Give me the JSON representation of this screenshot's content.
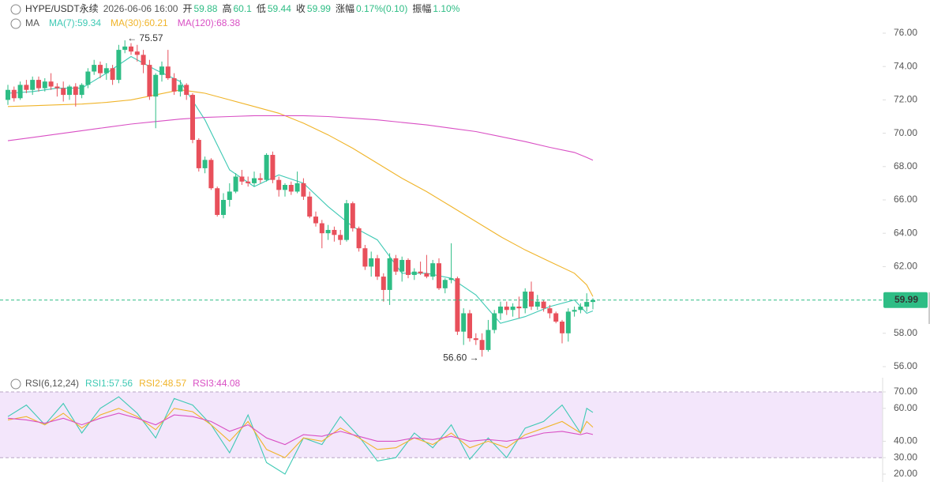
{
  "chart_data": {
    "type": "candlestick",
    "symbol": "HYPE/USDT永续",
    "time": "2026-06-06 16:00",
    "ohlc_labels": [
      "开",
      "高",
      "低",
      "收"
    ],
    "change_label": "涨幅",
    "change": "0.17%(0.10)",
    "amplitude_label": "振幅",
    "amplitude": "1.10%",
    "indicator": "MA",
    "up_color": "#2ebd85",
    "down_color": "#e8505b",
    "ylim": [
      55.5,
      77.5
    ],
    "yticks": [
      {
        "value": 56,
        "label": "56.00"
      },
      {
        "value": 58,
        "label": "58.00"
      },
      {
        "value": 60,
        "label": "60.00"
      },
      {
        "value": 62,
        "label": "62.00"
      },
      {
        "value": 64,
        "label": "64.00"
      },
      {
        "value": 66,
        "label": "66.00"
      },
      {
        "value": 68,
        "label": "68.00"
      },
      {
        "value": 70,
        "label": "70.00"
      },
      {
        "value": 72,
        "label": "72.00"
      },
      {
        "value": 74,
        "label": "74.00"
      },
      {
        "value": 76,
        "label": "76.00"
      }
    ],
    "candles": [
      [
        72.0,
        72.9,
        71.7,
        72.6
      ],
      [
        72.6,
        72.8,
        71.9,
        72.1
      ],
      [
        72.1,
        73.1,
        72.0,
        72.9
      ],
      [
        72.9,
        73.2,
        72.4,
        72.6
      ],
      [
        72.6,
        73.4,
        72.3,
        73.2
      ],
      [
        73.2,
        73.4,
        72.5,
        72.7
      ],
      [
        72.7,
        73.3,
        72.5,
        73.1
      ],
      [
        73.1,
        73.6,
        72.6,
        72.8
      ],
      [
        72.8,
        73.0,
        72.2,
        72.7
      ],
      [
        72.7,
        73.1,
        71.9,
        72.3
      ],
      [
        72.3,
        72.9,
        72.0,
        72.8
      ],
      [
        72.8,
        73.0,
        71.6,
        72.3
      ],
      [
        72.3,
        73.0,
        72.1,
        72.9
      ],
      [
        72.9,
        73.9,
        72.7,
        73.7
      ],
      [
        73.7,
        74.4,
        73.5,
        74.1
      ],
      [
        74.1,
        74.3,
        73.3,
        73.6
      ],
      [
        73.6,
        74.2,
        73.2,
        73.9
      ],
      [
        73.9,
        74.1,
        72.9,
        73.2
      ],
      [
        73.2,
        75.3,
        73.0,
        75.0
      ],
      [
        75.0,
        75.57,
        74.8,
        75.2
      ],
      [
        75.2,
        75.4,
        74.7,
        74.9
      ],
      [
        74.9,
        75.3,
        74.3,
        74.7
      ],
      [
        74.7,
        75.0,
        73.6,
        74.1
      ],
      [
        74.1,
        74.4,
        72.0,
        72.2
      ],
      [
        72.2,
        73.6,
        70.3,
        73.5
      ],
      [
        73.5,
        74.3,
        73.1,
        74.0
      ],
      [
        74.0,
        75.0,
        73.2,
        73.3
      ],
      [
        73.3,
        73.6,
        72.3,
        72.5
      ],
      [
        72.5,
        73.2,
        72.2,
        72.9
      ],
      [
        72.9,
        73.0,
        72.0,
        72.3
      ],
      [
        72.3,
        72.4,
        69.4,
        69.6
      ],
      [
        69.6,
        69.7,
        67.7,
        67.9
      ],
      [
        67.9,
        68.6,
        67.6,
        68.4
      ],
      [
        68.4,
        68.5,
        66.6,
        66.7
      ],
      [
        66.7,
        66.8,
        65.0,
        65.1
      ],
      [
        65.1,
        66.4,
        64.9,
        66.0
      ],
      [
        66.0,
        67.0,
        65.6,
        66.5
      ],
      [
        66.5,
        67.6,
        66.4,
        67.4
      ],
      [
        67.4,
        67.8,
        66.9,
        67.1
      ],
      [
        67.1,
        67.4,
        66.8,
        67.0
      ],
      [
        67.0,
        67.7,
        66.8,
        67.3
      ],
      [
        67.3,
        67.6,
        67.0,
        67.2
      ],
      [
        67.2,
        68.8,
        67.1,
        68.7
      ],
      [
        68.7,
        68.9,
        67.0,
        67.2
      ],
      [
        67.2,
        67.4,
        66.2,
        66.6
      ],
      [
        66.6,
        67.0,
        66.2,
        66.9
      ],
      [
        66.9,
        67.1,
        66.3,
        66.5
      ],
      [
        66.5,
        67.7,
        66.4,
        67.0
      ],
      [
        67.0,
        67.3,
        66.0,
        66.2
      ],
      [
        66.2,
        66.5,
        64.9,
        65.0
      ],
      [
        65.0,
        65.3,
        64.4,
        64.6
      ],
      [
        64.6,
        64.8,
        63.1,
        64.0
      ],
      [
        64.0,
        64.5,
        63.6,
        64.2
      ],
      [
        64.2,
        64.4,
        63.5,
        63.9
      ],
      [
        63.9,
        64.2,
        63.3,
        63.6
      ],
      [
        63.6,
        66.0,
        63.5,
        65.8
      ],
      [
        65.8,
        65.9,
        64.1,
        64.3
      ],
      [
        64.3,
        64.4,
        62.9,
        63.1
      ],
      [
        63.1,
        63.3,
        61.8,
        62.0
      ],
      [
        62.0,
        62.9,
        61.4,
        62.5
      ],
      [
        62.5,
        62.7,
        61.2,
        61.4
      ],
      [
        61.4,
        61.6,
        59.9,
        60.6
      ],
      [
        60.6,
        62.8,
        59.7,
        62.5
      ],
      [
        62.5,
        62.7,
        61.5,
        61.7
      ],
      [
        61.7,
        62.6,
        61.1,
        62.4
      ],
      [
        62.4,
        62.5,
        61.3,
        61.5
      ],
      [
        61.5,
        61.9,
        61.2,
        61.7
      ],
      [
        61.7,
        62.3,
        61.5,
        61.6
      ],
      [
        61.6,
        62.7,
        61.3,
        61.4
      ],
      [
        61.4,
        62.4,
        61.2,
        62.2
      ],
      [
        62.2,
        62.5,
        60.6,
        60.7
      ],
      [
        60.7,
        61.3,
        60.4,
        61.2
      ],
      [
        61.2,
        63.4,
        61.0,
        61.3
      ],
      [
        61.3,
        61.4,
        57.9,
        58.1
      ],
      [
        58.1,
        59.5,
        57.3,
        59.2
      ],
      [
        59.2,
        59.4,
        57.5,
        57.7
      ],
      [
        57.7,
        58.0,
        57.3,
        57.6
      ],
      [
        57.6,
        58.0,
        56.6,
        57.0
      ],
      [
        57.0,
        58.8,
        56.9,
        58.2
      ],
      [
        58.2,
        59.4,
        58.0,
        59.2
      ],
      [
        59.2,
        59.9,
        58.8,
        59.6
      ],
      [
        59.6,
        59.9,
        59.1,
        59.4
      ],
      [
        59.4,
        59.8,
        59.0,
        59.6
      ],
      [
        59.6,
        60.2,
        58.9,
        59.5
      ],
      [
        59.5,
        60.7,
        59.2,
        60.5
      ],
      [
        60.5,
        61.1,
        59.4,
        59.6
      ],
      [
        59.6,
        60.3,
        59.4,
        59.9
      ],
      [
        59.9,
        60.0,
        59.3,
        59.5
      ],
      [
        59.5,
        59.7,
        58.9,
        59.2
      ],
      [
        59.2,
        59.3,
        58.6,
        58.7
      ],
      [
        58.7,
        58.8,
        57.4,
        58.0
      ],
      [
        58.0,
        59.5,
        57.5,
        59.3
      ],
      [
        59.3,
        59.6,
        59.0,
        59.4
      ],
      [
        59.4,
        59.8,
        59.2,
        59.6
      ],
      [
        59.6,
        60.4,
        59.3,
        59.88
      ],
      [
        59.88,
        60.1,
        59.44,
        59.99
      ]
    ],
    "high_annotation": "← 75.57",
    "low_annotation": "56.60 →",
    "ma_x": [
      0,
      4,
      8,
      12,
      16,
      20,
      24,
      28,
      32,
      36,
      40,
      44,
      48,
      52,
      56,
      60,
      64,
      68,
      72,
      76,
      80,
      84,
      88,
      92,
      94,
      95
    ],
    "series": [
      {
        "name": "MA(7):59.34",
        "color": "#3ec9b4",
        "values": [
          72.4,
          72.5,
          72.7,
          72.7,
          73.6,
          74.6,
          73.8,
          73.1,
          70.8,
          67.8,
          66.8,
          67.5,
          67.0,
          65.6,
          64.4,
          63.6,
          61.6,
          61.6,
          61.3,
          60.3,
          58.6,
          59.0,
          59.6,
          60.0,
          59.2,
          59.34
        ]
      },
      {
        "name": "MA(30):60.21",
        "color": "#f0b429",
        "values": [
          71.6,
          71.65,
          71.7,
          71.75,
          71.85,
          72.0,
          72.3,
          72.6,
          72.4,
          72.0,
          71.6,
          71.2,
          70.6,
          69.9,
          69.1,
          68.2,
          67.3,
          66.5,
          65.6,
          64.7,
          63.8,
          63.0,
          62.3,
          61.6,
          60.9,
          60.21
        ]
      },
      {
        "name": "MA(120):68.38",
        "color": "#d94fc4",
        "values": [
          69.55,
          69.75,
          69.95,
          70.15,
          70.35,
          70.55,
          70.7,
          70.85,
          70.95,
          71.0,
          71.05,
          71.05,
          71.05,
          71.0,
          70.9,
          70.8,
          70.65,
          70.5,
          70.3,
          70.1,
          69.8,
          69.5,
          69.15,
          68.85,
          68.55,
          68.38
        ]
      }
    ],
    "rsi": {
      "indicator": "RSI(6,12,24)",
      "ylim": [
        18,
        72
      ],
      "band": [
        30,
        70
      ],
      "yticks": [
        {
          "value": 20,
          "label": "20.00"
        },
        {
          "value": 30,
          "label": "30.00"
        },
        {
          "value": 40,
          "label": "40.00"
        },
        {
          "value": 60,
          "label": "60.00"
        },
        {
          "value": 70,
          "label": "70.00"
        }
      ],
      "x": [
        0,
        3,
        6,
        9,
        12,
        15,
        18,
        21,
        24,
        27,
        30,
        33,
        36,
        39,
        42,
        45,
        48,
        51,
        54,
        57,
        60,
        63,
        66,
        69,
        72,
        75,
        78,
        81,
        84,
        87,
        90,
        93,
        94,
        95
      ],
      "series": [
        {
          "name": "RSI1:57.56",
          "color": "#3ec9b4",
          "values": [
            55,
            62,
            50,
            63,
            45,
            60,
            67,
            57,
            42,
            66,
            62,
            50,
            33,
            56,
            27,
            20,
            42,
            38,
            55,
            43,
            28,
            30,
            45,
            36,
            50,
            29,
            42,
            30,
            48,
            52,
            62,
            45,
            60,
            57.56
          ]
        },
        {
          "name": "RSI2:48.57",
          "color": "#f0b429",
          "values": [
            53,
            55,
            50,
            57,
            48,
            56,
            60,
            55,
            47,
            60,
            58,
            50,
            40,
            52,
            35,
            30,
            42,
            40,
            48,
            42,
            35,
            36,
            42,
            38,
            45,
            36,
            40,
            36,
            44,
            48,
            52,
            45,
            52,
            48.57
          ]
        },
        {
          "name": "RSI3:44.08",
          "color": "#d94fc4",
          "values": [
            54,
            53,
            51,
            54,
            50,
            54,
            57,
            54,
            50,
            56,
            55,
            52,
            46,
            50,
            42,
            38,
            44,
            43,
            46,
            43,
            40,
            40,
            42,
            41,
            43,
            40,
            41,
            40,
            42,
            45,
            46,
            44,
            45,
            44.08
          ]
        }
      ]
    }
  }
}
